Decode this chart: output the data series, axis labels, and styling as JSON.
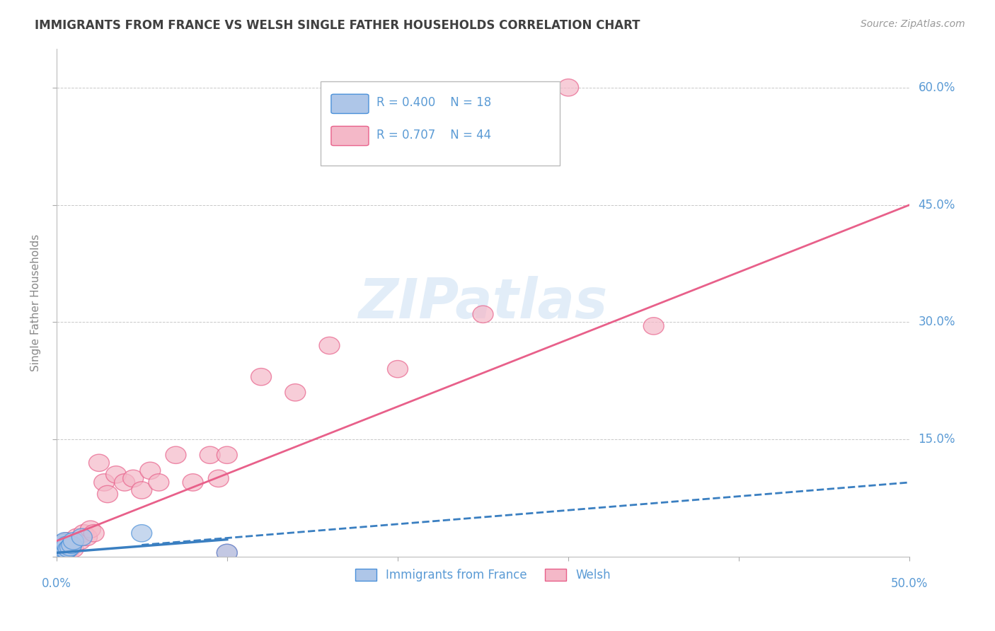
{
  "title": "IMMIGRANTS FROM FRANCE VS WELSH SINGLE FATHER HOUSEHOLDS CORRELATION CHART",
  "source": "Source: ZipAtlas.com",
  "ylabel": "Single Father Households",
  "xlim": [
    0,
    0.5
  ],
  "ylim": [
    0,
    0.65
  ],
  "xticks": [
    0.0,
    0.1,
    0.2,
    0.3,
    0.4,
    0.5
  ],
  "xtick_labels": [
    "0.0%",
    "",
    "",
    "",
    "",
    "50.0%"
  ],
  "yticks": [
    0.0,
    0.15,
    0.3,
    0.45,
    0.6
  ],
  "ytick_labels": [
    "",
    "15.0%",
    "30.0%",
    "45.0%",
    "60.0%"
  ],
  "blue_fill": "#aec6e8",
  "blue_edge": "#4a90d9",
  "pink_fill": "#f4b8c8",
  "pink_edge": "#e8608a",
  "blue_line_color": "#3a7fc1",
  "pink_line_color": "#e8608a",
  "axis_color": "#5b9bd5",
  "title_color": "#404040",
  "legend_r_blue": "R = 0.400",
  "legend_n_blue": "N = 18",
  "legend_r_pink": "R = 0.707",
  "legend_n_pink": "N = 44",
  "blue_scatter_x": [
    0.001,
    0.002,
    0.002,
    0.003,
    0.003,
    0.004,
    0.004,
    0.005,
    0.005,
    0.006,
    0.006,
    0.007,
    0.008,
    0.009,
    0.01,
    0.015,
    0.05,
    0.1
  ],
  "blue_scatter_y": [
    0.005,
    0.008,
    0.012,
    0.007,
    0.015,
    0.01,
    0.018,
    0.012,
    0.02,
    0.008,
    0.015,
    0.01,
    0.012,
    0.015,
    0.02,
    0.025,
    0.03,
    0.005
  ],
  "pink_scatter_x": [
    0.001,
    0.001,
    0.002,
    0.002,
    0.003,
    0.003,
    0.004,
    0.004,
    0.005,
    0.005,
    0.006,
    0.006,
    0.007,
    0.008,
    0.009,
    0.01,
    0.012,
    0.014,
    0.016,
    0.018,
    0.02,
    0.022,
    0.025,
    0.028,
    0.03,
    0.035,
    0.04,
    0.045,
    0.05,
    0.055,
    0.06,
    0.07,
    0.08,
    0.09,
    0.095,
    0.1,
    0.12,
    0.14,
    0.16,
    0.2,
    0.25,
    0.3,
    0.35,
    0.1
  ],
  "pink_scatter_y": [
    0.005,
    0.01,
    0.008,
    0.015,
    0.005,
    0.012,
    0.01,
    0.018,
    0.008,
    0.015,
    0.01,
    0.02,
    0.012,
    0.01,
    0.015,
    0.01,
    0.025,
    0.02,
    0.03,
    0.025,
    0.035,
    0.03,
    0.12,
    0.095,
    0.08,
    0.105,
    0.095,
    0.1,
    0.085,
    0.11,
    0.095,
    0.13,
    0.095,
    0.13,
    0.1,
    0.13,
    0.23,
    0.21,
    0.27,
    0.24,
    0.31,
    0.6,
    0.295,
    0.005
  ],
  "watermark": "ZIPatlas",
  "background_color": "#ffffff",
  "grid_color": "#c8c8c8"
}
